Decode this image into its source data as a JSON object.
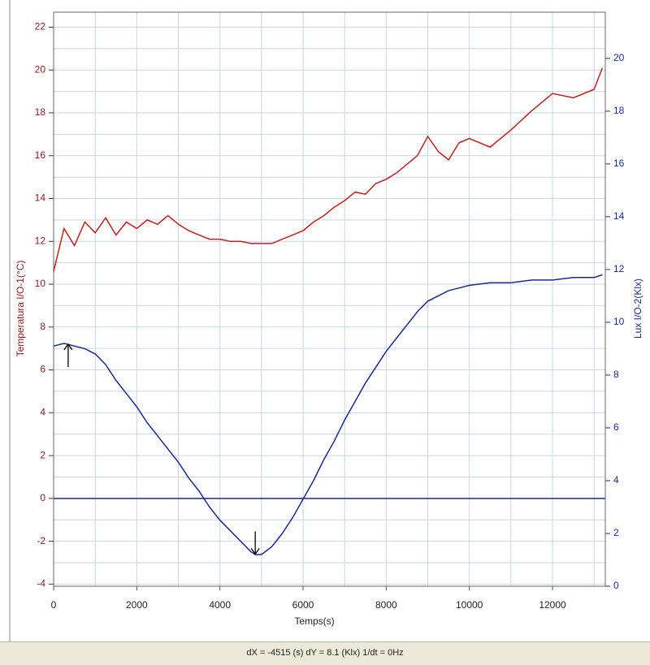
{
  "chart_data": {
    "type": "line",
    "x_label": "Temps(s)",
    "y_label": "Temperatura I/O-1(°C)",
    "y2_label": "Lux I/O-2(Klx)",
    "status": "dX = -4515 (s) dY = 8.1 (Klx)  1/dt = 0Hz",
    "xlim": [
      0,
      13270
    ],
    "xticks": [
      0,
      2000,
      4000,
      6000,
      8000,
      10000,
      12000
    ],
    "minor_xticks": [
      1000,
      3000,
      5000,
      7000,
      9000,
      11000,
      13000
    ],
    "ylim": [
      -4.1,
      22.7
    ],
    "yticks": [
      -4,
      -2,
      0,
      2,
      4,
      6,
      8,
      10,
      12,
      14,
      16,
      18,
      20,
      22
    ],
    "minor_yticks": [
      -3,
      -1,
      1,
      3,
      5,
      7,
      9,
      11,
      13,
      15,
      17,
      19,
      21
    ],
    "y2lim": [
      0,
      21.75
    ],
    "y2ticks": [
      0,
      2,
      4,
      6,
      8,
      10,
      12,
      14,
      16,
      18,
      20
    ],
    "grid": true,
    "x": [
      0,
      250,
      500,
      750,
      1000,
      1250,
      1500,
      1750,
      2000,
      2250,
      2500,
      2750,
      3000,
      3250,
      3500,
      3750,
      4000,
      4250,
      4500,
      4750,
      4850,
      5000,
      5250,
      5500,
      5750,
      6000,
      6250,
      6500,
      6750,
      7000,
      7250,
      7500,
      7750,
      8000,
      8250,
      8500,
      8750,
      9000,
      9250,
      9500,
      9750,
      10000,
      10500,
      11000,
      11500,
      12000,
      12500,
      13000,
      13200
    ],
    "series": [
      {
        "name": "Temperatura I/O-1",
        "color": "#c41e1e",
        "axis": "y",
        "values": [
          10.6,
          12.6,
          11.8,
          12.9,
          12.4,
          13.1,
          12.3,
          12.9,
          12.6,
          13.0,
          12.8,
          13.2,
          12.8,
          12.5,
          12.3,
          12.1,
          12.1,
          12.0,
          12.0,
          11.9,
          11.9,
          11.9,
          11.9,
          12.1,
          12.3,
          12.5,
          12.9,
          13.2,
          13.6,
          13.9,
          14.3,
          14.2,
          14.7,
          14.9,
          15.2,
          15.6,
          16.0,
          16.9,
          16.2,
          15.8,
          16.6,
          16.8,
          16.4,
          17.2,
          18.1,
          18.9,
          18.7,
          19.1,
          20.1
        ]
      },
      {
        "name": "Lux I/O-2",
        "color": "#1c2a96",
        "axis": "y2",
        "values": [
          9.1,
          9.2,
          9.1,
          9.0,
          8.8,
          8.4,
          7.8,
          7.3,
          6.8,
          6.2,
          5.7,
          5.2,
          4.7,
          4.1,
          3.6,
          3.0,
          2.5,
          2.1,
          1.7,
          1.3,
          1.2,
          1.2,
          1.5,
          2.0,
          2.6,
          3.3,
          4.0,
          4.8,
          5.5,
          6.3,
          7.0,
          7.7,
          8.3,
          8.9,
          9.4,
          9.9,
          10.4,
          10.8,
          11.0,
          11.2,
          11.3,
          11.4,
          11.5,
          11.5,
          11.6,
          11.6,
          11.7,
          11.7,
          11.8
        ]
      }
    ],
    "cursors": [
      {
        "x": 350,
        "y": 7.2
      },
      {
        "x": 4850,
        "y": -2.6
      }
    ]
  }
}
